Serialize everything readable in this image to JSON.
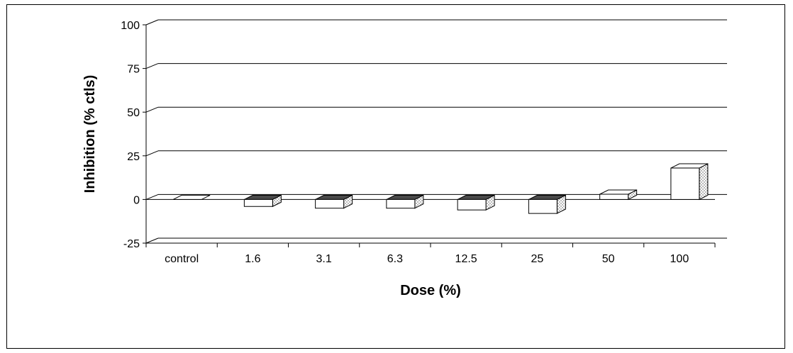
{
  "chart_data": {
    "type": "bar",
    "style": "3d-column",
    "title": "",
    "xlabel": "Dose (%)",
    "ylabel": "Inhibition (% ctls)",
    "categories": [
      "control",
      "1.6",
      "3.1",
      "6.3",
      "12.5",
      "25",
      "50",
      "100"
    ],
    "values": [
      0,
      -4,
      -5,
      -5,
      -6,
      -8,
      3,
      18
    ],
    "ylim": [
      -25,
      100
    ],
    "yticks": [
      -25,
      0,
      25,
      50,
      75,
      100
    ],
    "ytick_labels": [
      "-25",
      "0",
      "25",
      "50",
      "75",
      "100"
    ],
    "grid": true,
    "legend": "none",
    "colors": {
      "bar_front": "#ffffff",
      "bar_top": "#4a4a4a",
      "bar_side": "#f2f2f2",
      "outline": "#000000",
      "grid": "#000000"
    }
  }
}
